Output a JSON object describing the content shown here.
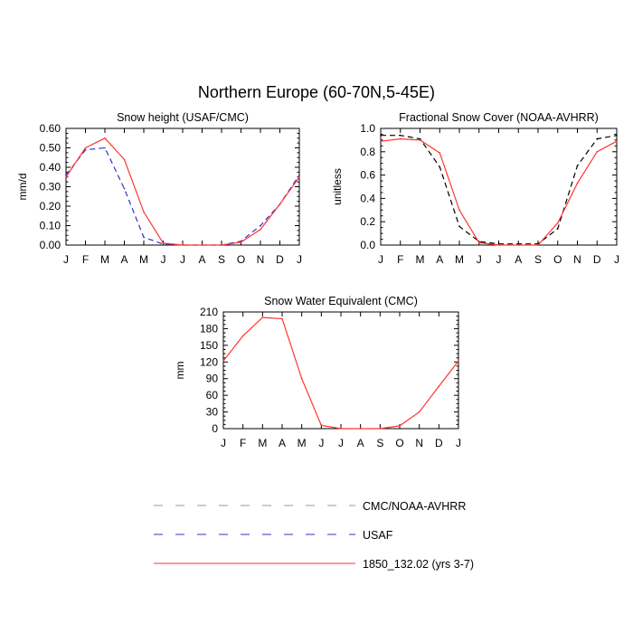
{
  "figure_title": "Northern Europe (60-70N,5-45E)",
  "legend": [
    {
      "label": "CMC/NOAA-AVHRR",
      "color": "#999999",
      "style": "dashed"
    },
    {
      "label": "USAF",
      "color": "#3333cc",
      "style": "dashed"
    },
    {
      "label": "1850_132.02 (yrs 3-7)",
      "color": "#ff3333",
      "style": "solid"
    }
  ],
  "chart_data": [
    {
      "type": "line",
      "title": "Snow height (USAF/CMC)",
      "xlabel": "",
      "ylabel": "mm/d",
      "categories": [
        "J",
        "F",
        "M",
        "A",
        "M",
        "J",
        "J",
        "A",
        "S",
        "O",
        "N",
        "D",
        "J"
      ],
      "ylim": [
        0,
        0.6
      ],
      "yticks": [
        0,
        0.1,
        0.2,
        0.3,
        0.4,
        0.5,
        0.6
      ],
      "ytick_labels": [
        "0.00",
        "0.10",
        "0.20",
        "0.30",
        "0.40",
        "0.50",
        "0.60"
      ],
      "series": [
        {
          "name": "USAF",
          "color": "#3333cc",
          "style": "dashed",
          "values": [
            0.36,
            0.49,
            0.5,
            0.29,
            0.04,
            0.005,
            0.0,
            0.0,
            0.0,
            0.02,
            0.1,
            0.21,
            0.36
          ]
        },
        {
          "name": "1850_132.02 (yrs 3-7)",
          "color": "#ff3333",
          "style": "solid",
          "values": [
            0.35,
            0.5,
            0.55,
            0.44,
            0.17,
            0.01,
            0.0,
            0.0,
            0.0,
            0.015,
            0.08,
            0.21,
            0.35
          ]
        }
      ]
    },
    {
      "type": "line",
      "title": "Fractional Snow Cover (NOAA-AVHRR)",
      "xlabel": "",
      "ylabel": "unitless",
      "categories": [
        "J",
        "F",
        "M",
        "A",
        "M",
        "J",
        "J",
        "A",
        "S",
        "O",
        "N",
        "D",
        "J"
      ],
      "ylim": [
        0,
        1.0
      ],
      "yticks": [
        0,
        0.2,
        0.4,
        0.6,
        0.8,
        1.0
      ],
      "ytick_labels": [
        "0.0",
        "0.2",
        "0.4",
        "0.6",
        "0.8",
        "1.0"
      ],
      "series": [
        {
          "name": "CMC/NOAA-AVHRR",
          "color": "#000000",
          "style": "dashed",
          "values": [
            0.94,
            0.94,
            0.91,
            0.67,
            0.16,
            0.03,
            0.01,
            0.01,
            0.01,
            0.14,
            0.68,
            0.91,
            0.94
          ]
        },
        {
          "name": "1850_132.02 (yrs 3-7)",
          "color": "#ff3333",
          "style": "solid",
          "values": [
            0.89,
            0.91,
            0.9,
            0.79,
            0.3,
            0.02,
            0.0,
            0.0,
            0.0,
            0.19,
            0.53,
            0.8,
            0.89
          ]
        }
      ]
    },
    {
      "type": "line",
      "title": "Snow Water Equivalent (CMC)",
      "xlabel": "",
      "ylabel": "mm",
      "categories": [
        "J",
        "F",
        "M",
        "A",
        "M",
        "J",
        "J",
        "A",
        "S",
        "O",
        "N",
        "D",
        "J"
      ],
      "ylim": [
        0,
        210
      ],
      "yticks": [
        0,
        30,
        60,
        90,
        120,
        150,
        180,
        210
      ],
      "ytick_labels": [
        "0",
        "30",
        "60",
        "90",
        "120",
        "150",
        "180",
        "210"
      ],
      "series": [
        {
          "name": "1850_132.02 (yrs 3-7)",
          "color": "#ff3333",
          "style": "solid",
          "values": [
            122,
            167,
            200,
            198,
            90,
            6,
            0,
            0,
            0,
            5,
            30,
            76,
            122
          ]
        }
      ]
    }
  ]
}
